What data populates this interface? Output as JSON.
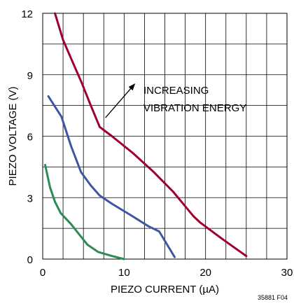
{
  "chart_data": {
    "type": "line",
    "title": "",
    "xlabel": "PIEZO CURRENT (µA)",
    "ylabel": "PIEZO VOLTAGE (V)",
    "xlim": [
      0,
      30
    ],
    "ylim": [
      0,
      12
    ],
    "x_ticks": [
      0,
      10,
      20,
      30
    ],
    "y_ticks": [
      0,
      3,
      6,
      9,
      12
    ],
    "x_grid_step": 2.5,
    "y_grid_step": 1.5,
    "grid": true,
    "series": [
      {
        "color": "#a0002e",
        "points": [
          [
            1.5,
            12.0
          ],
          [
            2.5,
            10.7
          ],
          [
            3.7,
            9.6
          ],
          [
            4.8,
            8.6
          ],
          [
            5.8,
            7.6
          ],
          [
            7.0,
            6.45
          ],
          [
            8.5,
            6.0
          ],
          [
            11.0,
            5.2
          ],
          [
            13.5,
            4.3
          ],
          [
            16.0,
            3.3
          ],
          [
            18.5,
            2.1
          ],
          [
            19.3,
            1.8
          ],
          [
            22.0,
            1.0
          ],
          [
            25.0,
            0.15
          ]
        ]
      },
      {
        "color": "#3f54a3",
        "points": [
          [
            0.7,
            7.95
          ],
          [
            2.3,
            6.95
          ],
          [
            3.5,
            5.5
          ],
          [
            4.7,
            4.25
          ],
          [
            5.9,
            3.6
          ],
          [
            7.0,
            3.1
          ],
          [
            8.5,
            2.7
          ],
          [
            11.0,
            2.1
          ],
          [
            13.0,
            1.6
          ],
          [
            14.3,
            1.35
          ],
          [
            16.2,
            0.1
          ]
        ]
      },
      {
        "color": "#2e8b55",
        "points": [
          [
            0.3,
            4.6
          ],
          [
            0.9,
            3.5
          ],
          [
            1.5,
            2.8
          ],
          [
            2.2,
            2.25
          ],
          [
            3.5,
            1.7
          ],
          [
            4.5,
            1.2
          ],
          [
            5.5,
            0.7
          ],
          [
            6.8,
            0.35
          ],
          [
            8.5,
            0.15
          ],
          [
            10.0,
            0.0
          ]
        ]
      }
    ],
    "annotation": {
      "lines": [
        "INCREASING",
        "VIBRATION ENERGY"
      ],
      "arrow_from": [
        7.7,
        6.9
      ],
      "arrow_to": [
        11.3,
        8.55
      ]
    },
    "figure_id": "35881 F04"
  }
}
